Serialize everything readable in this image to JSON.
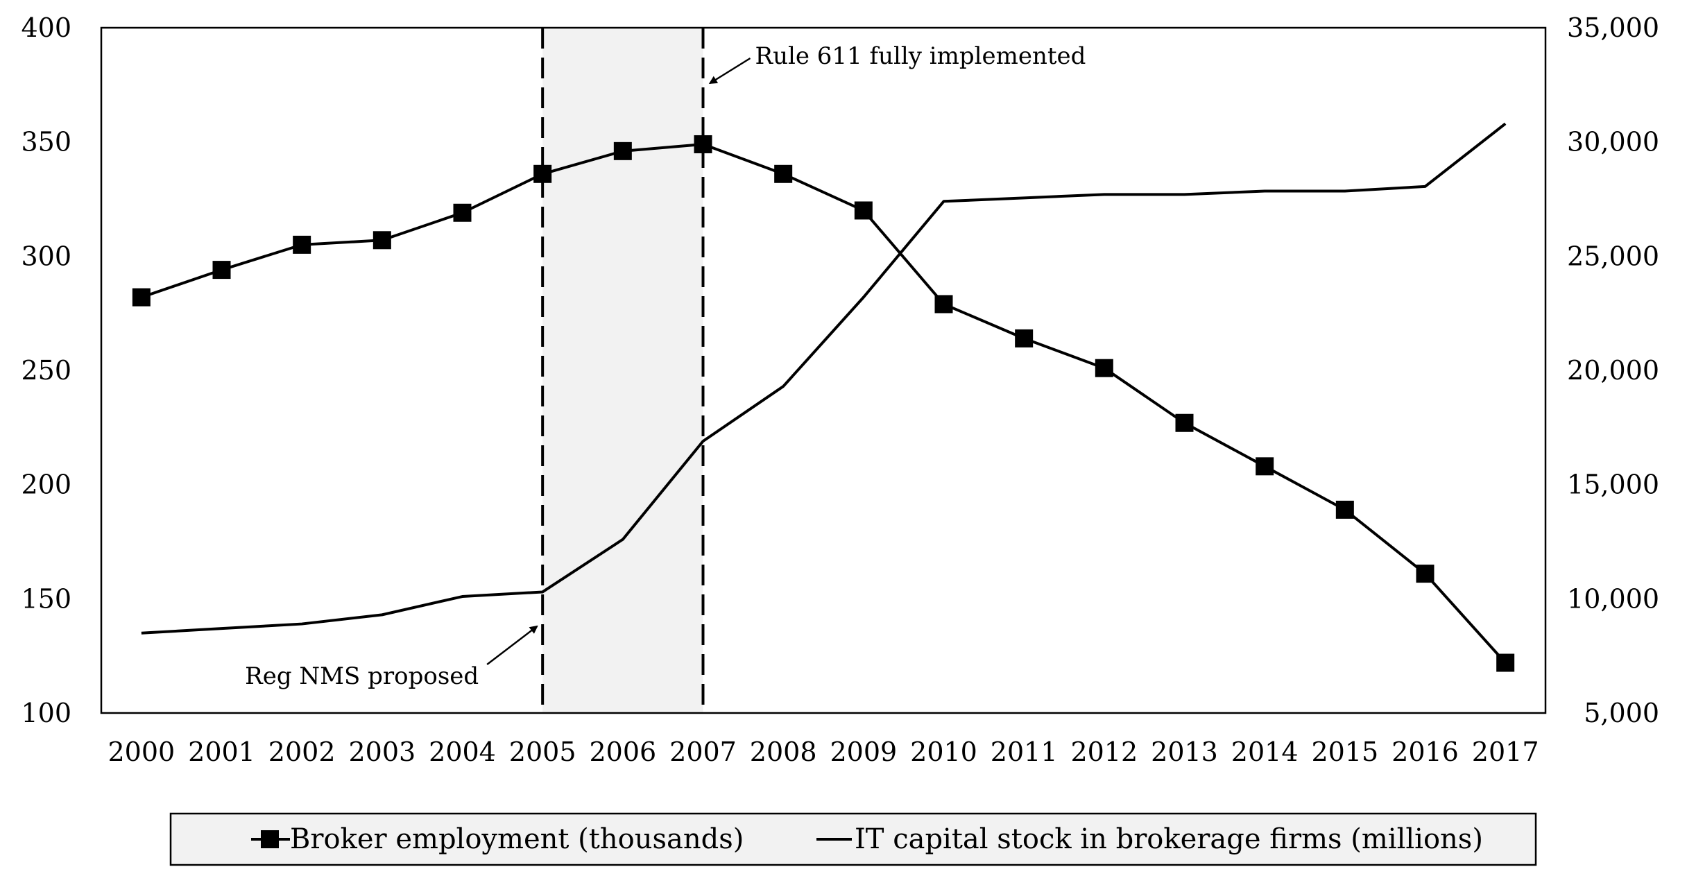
{
  "chart_data": {
    "type": "line",
    "x": [
      "2000",
      "2001",
      "2002",
      "2003",
      "2004",
      "2005",
      "2006",
      "2007",
      "2008",
      "2009",
      "2010",
      "2011",
      "2012",
      "2013",
      "2014",
      "2015",
      "2016",
      "2017"
    ],
    "left_axis": {
      "ylim": [
        100,
        400
      ],
      "ticks": [
        "100",
        "150",
        "200",
        "250",
        "300",
        "350",
        "400"
      ]
    },
    "right_axis": {
      "ylim": [
        5000,
        35000
      ],
      "ticks": [
        "5,000",
        "10,000",
        "15,000",
        "20,000",
        "25,000",
        "30,000",
        "35,000"
      ]
    },
    "series": [
      {
        "name": "Broker employment (thousands)",
        "axis": "left",
        "marker": "square",
        "values": [
          282,
          294,
          305,
          307,
          319,
          336,
          346,
          349,
          336,
          320,
          279,
          264,
          251,
          227,
          208,
          189,
          161,
          122
        ]
      },
      {
        "name": "IT capital stock in brokerage firms (millions)",
        "axis": "right",
        "marker": "none",
        "values": [
          8500,
          8700,
          8900,
          9300,
          10100,
          10300,
          12600,
          16900,
          19300,
          23200,
          27400,
          27550,
          27700,
          27700,
          27850,
          27850,
          28050,
          30800
        ]
      }
    ],
    "shaded_region": {
      "from": "2005",
      "to": "2007"
    },
    "annotations": [
      {
        "text": "Reg NMS proposed",
        "at": "2005"
      },
      {
        "text": "Rule 611 fully implemented",
        "at": "2007"
      }
    ],
    "legend": {
      "placement": "bottom"
    },
    "grid": false
  }
}
